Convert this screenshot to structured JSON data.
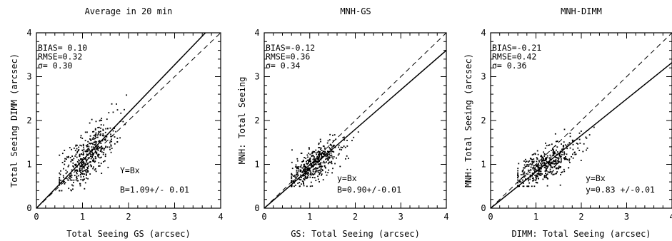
{
  "chart_data": [
    {
      "type": "scatter",
      "title": "Average in  20 min",
      "xlabel": "Total Seeing GS (arcsec)",
      "ylabel": "Total Seeing DIMM (arcsec)",
      "xlim": [
        0,
        4
      ],
      "ylim": [
        0,
        4
      ],
      "xticks": [
        "0",
        "1",
        "2",
        "3",
        "4"
      ],
      "yticks": [
        "0",
        "1",
        "2",
        "3",
        "4"
      ],
      "stats": [
        "BIAS= 0.10",
        "RMSE=0.32",
        "σ= 0.30"
      ],
      "fit_labels": [
        "Y=Bx",
        "B=1.09+/- 0.01"
      ],
      "fit_slope": 1.09,
      "reference_line": "y=x (dashed)",
      "scatter_cluster": {
        "x_center": 1.1,
        "y_center": 1.2,
        "x_range": [
          0.5,
          2.4
        ],
        "y_range": [
          0.4,
          2.9
        ],
        "approx_points": 450
      }
    },
    {
      "type": "scatter",
      "title": "MNH-GS",
      "xlabel": "GS: Total Seeing (arcsec)",
      "ylabel": "MNH: Total Seeing",
      "xlim": [
        0,
        4
      ],
      "ylim": [
        0,
        4
      ],
      "xticks": [
        "0",
        "1",
        "2",
        "3",
        "4"
      ],
      "yticks": [
        "0",
        "1",
        "2",
        "3",
        "4"
      ],
      "stats": [
        "BIAS=-0.12",
        "RMSE=0.36",
        "σ= 0.34"
      ],
      "fit_labels": [
        "y=Bx",
        "B=0.90+/-0.01"
      ],
      "fit_slope": 0.9,
      "reference_line": "y=x (dashed)",
      "scatter_cluster": {
        "x_center": 1.1,
        "y_center": 1.0,
        "x_range": [
          0.6,
          2.4
        ],
        "y_range": [
          0.5,
          2.3
        ],
        "approx_points": 450
      }
    },
    {
      "type": "scatter",
      "title": "MNH-DIMM",
      "xlabel": "DIMM: Total Seeing (arcsec)",
      "ylabel": "MNH: Total Seeing (arcsec)",
      "xlim": [
        0,
        4
      ],
      "ylim": [
        0,
        4
      ],
      "xticks": [
        "0",
        "1",
        "2",
        "3",
        "4"
      ],
      "yticks": [
        "0",
        "1",
        "2",
        "3",
        "4"
      ],
      "stats": [
        "BIAS=-0.21",
        "RMSE=0.42",
        "σ= 0.36"
      ],
      "fit_labels": [
        "y=Bx",
        "y=0.83 +/-0.01"
      ],
      "fit_slope": 0.83,
      "reference_line": "y=x (dashed)",
      "scatter_cluster": {
        "x_center": 1.2,
        "y_center": 1.0,
        "x_range": [
          0.6,
          2.8
        ],
        "y_range": [
          0.5,
          2.3
        ],
        "approx_points": 450
      }
    }
  ]
}
